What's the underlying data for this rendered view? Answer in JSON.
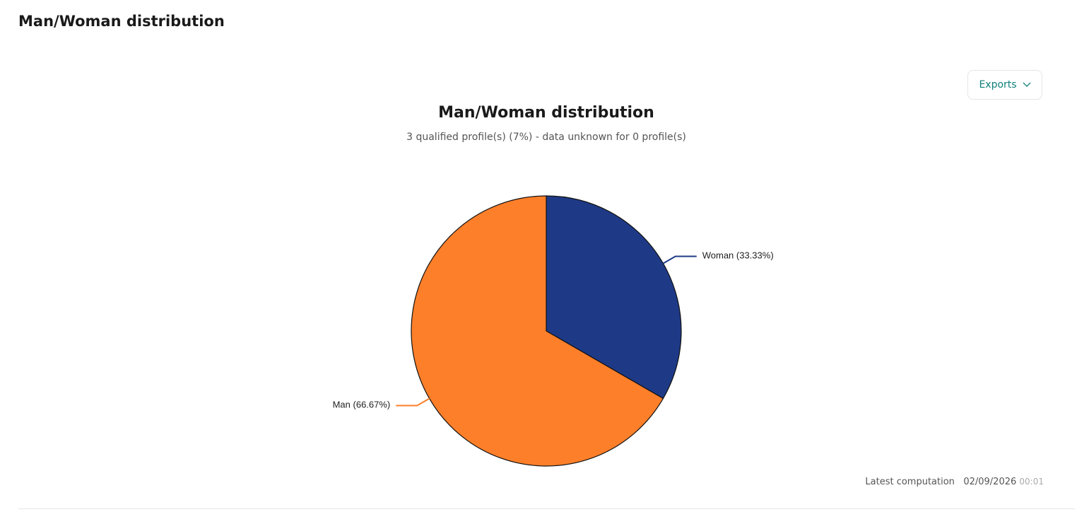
{
  "header": {
    "title": "Man/Woman distribution"
  },
  "exports_button": "Exports",
  "chart_data": {
    "type": "pie",
    "title": "Man/Woman distribution",
    "subtitle": "3 qualified profile(s) (7%) - data unknown for 0 profile(s)",
    "categories": [
      "Woman",
      "Man"
    ],
    "values": [
      33.33,
      66.67
    ],
    "value_labels": [
      "(33.33%)",
      "(66.67%)"
    ],
    "colors": [
      "#1e3a87",
      "#fd7f2a"
    ]
  },
  "footer": {
    "label": "Latest computation",
    "date": "02/09/2026",
    "time": "00:01"
  }
}
